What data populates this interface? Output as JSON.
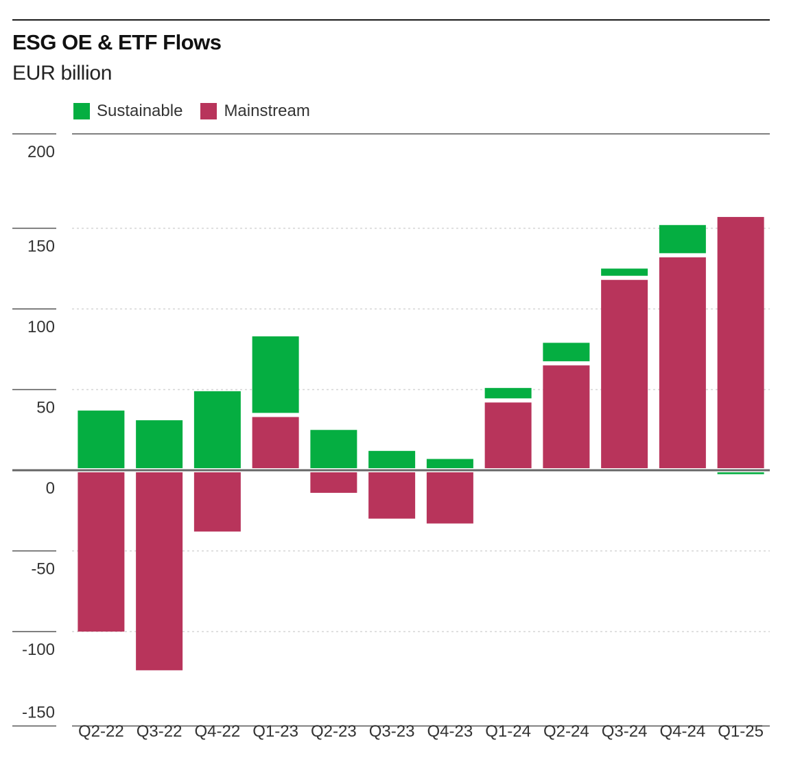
{
  "title": "ESG OE & ETF Flows",
  "subtitle": "EUR billion",
  "legend": [
    {
      "label": "Sustainable",
      "color": "#05ae41"
    },
    {
      "label": "Mainstream",
      "color": "#b8345b"
    }
  ],
  "chart_data": {
    "type": "bar",
    "stacked": true,
    "title": "ESG OE & ETF Flows",
    "ylabel": "EUR billion",
    "xlabel": "",
    "categories": [
      "Q2-22",
      "Q3-22",
      "Q4-22",
      "Q1-23",
      "Q2-23",
      "Q3-23",
      "Q4-23",
      "Q1-24",
      "Q2-24",
      "Q3-24",
      "Q4-24",
      "Q1-25"
    ],
    "series": [
      {
        "name": "Mainstream",
        "color": "#b8345b",
        "values": [
          -100,
          -124,
          -38,
          33,
          -14,
          -30,
          -33,
          42,
          65,
          118,
          132,
          157
        ]
      },
      {
        "name": "Sustainable",
        "color": "#05ae41",
        "values": [
          37,
          31,
          49,
          50,
          25,
          12,
          7,
          9,
          14,
          7,
          20,
          -2
        ]
      }
    ],
    "yticks": [
      200,
      150,
      100,
      50,
      0,
      -50,
      -100,
      -150
    ],
    "ylim": [
      -150,
      200
    ],
    "grid": true,
    "legend_position": "top-left"
  }
}
